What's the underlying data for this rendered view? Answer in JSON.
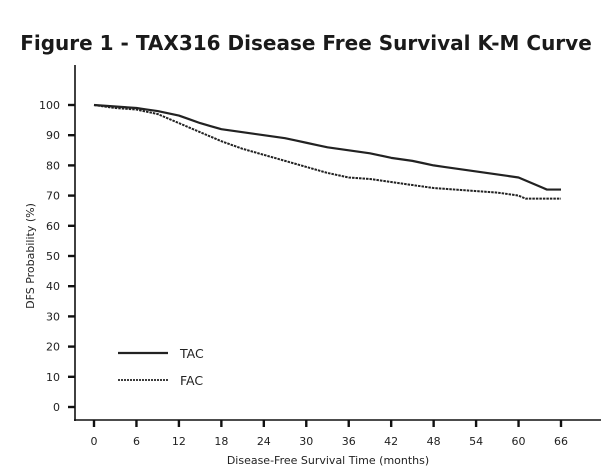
{
  "chart_data": {
    "type": "line",
    "title": "Figure 1 - TAX316 Disease Free Survival K-M Curve",
    "xlabel": "Disease-Free Survival Time (months)",
    "ylabel": "DFS Probability (%)",
    "xlim": [
      0,
      66
    ],
    "ylim": [
      0,
      100
    ],
    "xticks": [
      0,
      6,
      12,
      18,
      24,
      30,
      36,
      42,
      48,
      54,
      60,
      66
    ],
    "yticks": [
      0,
      10,
      20,
      30,
      40,
      50,
      60,
      70,
      80,
      90,
      100
    ],
    "grid": false,
    "legend_position": "bottom-left",
    "series": [
      {
        "name": "TAC",
        "style": "solid",
        "color": "#222222",
        "x": [
          0,
          3,
          6,
          9,
          12,
          15,
          18,
          21,
          24,
          27,
          30,
          33,
          36,
          39,
          42,
          45,
          48,
          51,
          54,
          57,
          60,
          61,
          62,
          63,
          64,
          66
        ],
        "y": [
          100,
          99.5,
          99,
          98,
          96.5,
          94,
          92,
          91,
          90,
          89,
          87.5,
          86,
          85,
          84,
          82.5,
          81.5,
          80,
          79,
          78,
          77,
          76,
          75,
          74,
          73,
          72,
          72
        ]
      },
      {
        "name": "FAC",
        "style": "dashed",
        "color": "#222222",
        "x": [
          0,
          3,
          6,
          9,
          12,
          15,
          18,
          21,
          24,
          27,
          30,
          33,
          36,
          39,
          42,
          45,
          48,
          51,
          54,
          57,
          60,
          61,
          63,
          66
        ],
        "y": [
          100,
          99,
          98.5,
          97,
          94,
          91,
          88,
          85.5,
          83.5,
          81.5,
          79.5,
          77.5,
          76,
          75.5,
          74.5,
          73.5,
          72.5,
          72,
          71.5,
          71,
          70,
          69,
          69,
          69
        ]
      }
    ]
  }
}
